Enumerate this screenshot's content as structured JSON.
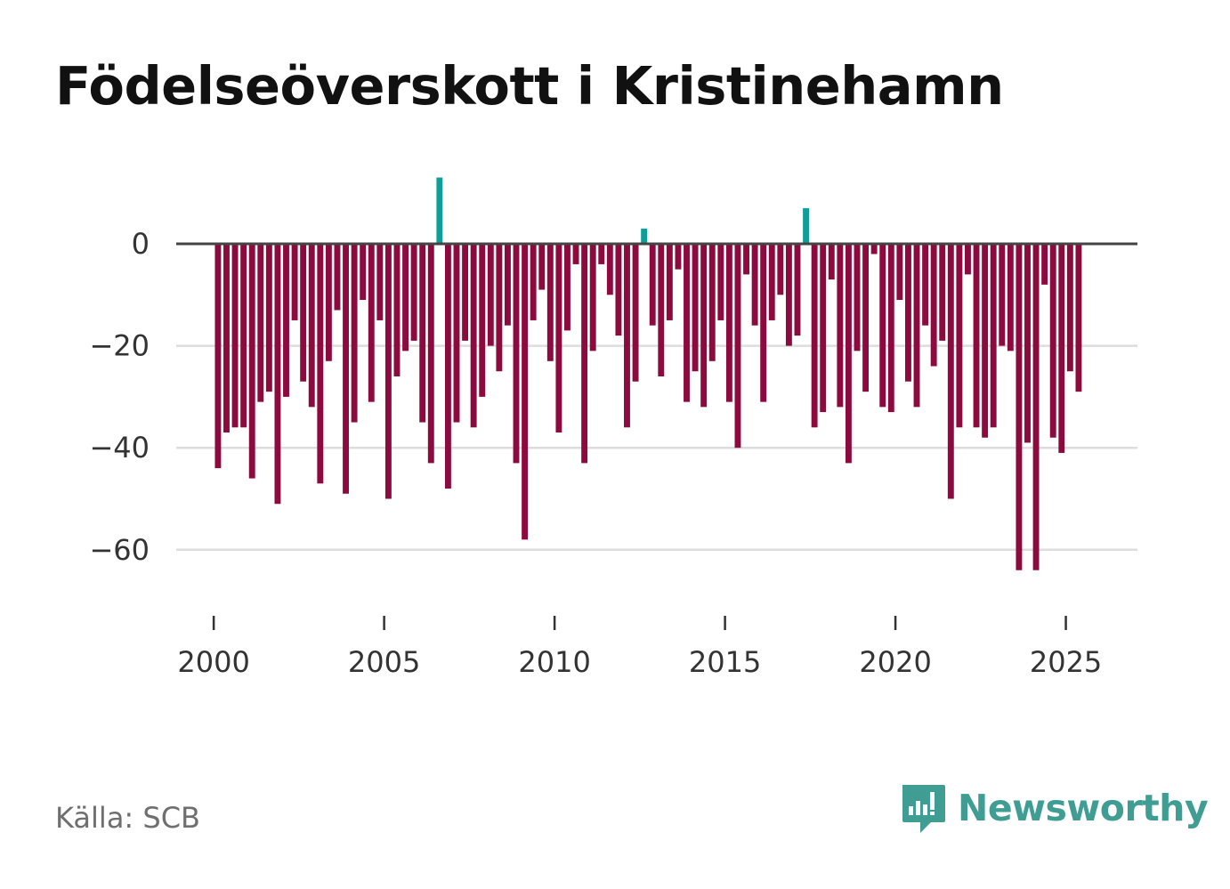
{
  "chart_data": {
    "type": "bar",
    "title": "Födelseöverskott i Kristinehamn",
    "xlabel": "",
    "ylabel": "",
    "ylim": [
      -72,
      14
    ],
    "xlim": [
      1998.9,
      2027.1
    ],
    "gridlines": [
      0,
      -20,
      -40,
      -60
    ],
    "ytick_labels": [
      "0",
      "−20",
      "−40",
      "−60"
    ],
    "xticks": [
      2000,
      2005,
      2010,
      2015,
      2020,
      2025
    ],
    "xtick_labels": [
      "2000",
      "2005",
      "2010",
      "2015",
      "2020",
      "2025"
    ],
    "frequency": "monthly-quarterly (4 per year)",
    "x_start": 2000.125,
    "x_step": 0.25,
    "values": [
      -44,
      -37,
      -36,
      -36,
      -46,
      -31,
      -29,
      -51,
      -30,
      -15,
      -27,
      -32,
      -47,
      -23,
      -13,
      -49,
      -35,
      -11,
      -31,
      -15,
      -50,
      -26,
      -21,
      -19,
      -35,
      -43,
      13,
      -48,
      -35,
      -19,
      -36,
      -30,
      -20,
      -25,
      -16,
      -43,
      -58,
      -15,
      -9,
      -23,
      -37,
      -17,
      -4,
      -43,
      -21,
      -4,
      -10,
      -18,
      -36,
      -27,
      3,
      -16,
      -26,
      -15,
      -5,
      -31,
      -25,
      -32,
      -23,
      -15,
      -31,
      -40,
      -6,
      -16,
      -31,
      -15,
      -10,
      -20,
      -18,
      7,
      -36,
      -33,
      -7,
      -32,
      -43,
      -21,
      -29,
      -2,
      -32,
      -33,
      -11,
      -27,
      -32,
      -16,
      -24,
      -19,
      -50,
      -36,
      -6,
      -36,
      -38,
      -36,
      -20,
      -21,
      -64,
      -39,
      -64,
      -8,
      -38,
      -41,
      -25,
      -29
    ],
    "colors": {
      "positive": "#0f9e98",
      "negative": "#8c0a3e",
      "zero_line": "#444444",
      "grid": "#dddddd"
    }
  },
  "footer": {
    "source": "Källa: SCB",
    "brand": "Newsworthy",
    "brand_color": "#3f9d94",
    "brand_icon": "bar-chart-speech-bubble-icon"
  }
}
